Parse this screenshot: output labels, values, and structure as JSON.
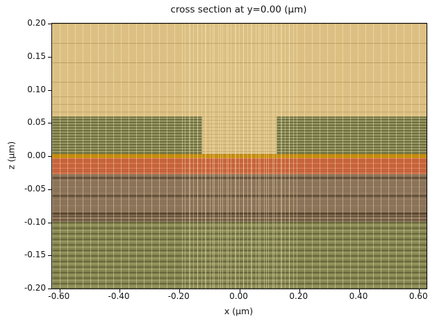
{
  "figure": {
    "title": "cross section at y=0.00 (μm)",
    "xlabel": "x (μm)",
    "ylabel": "z (μm)"
  },
  "chart_data": {
    "type": "heatmap",
    "title": "cross section at y=0.00 (μm)",
    "xlabel": "x (μm)",
    "ylabel": "z (μm)",
    "xlim": [
      -0.625,
      0.625
    ],
    "ylim": [
      -0.2,
      0.2
    ],
    "grid": "fine rectangular simulation mesh overlay, nonuniform spacing (denser near z=0 and near ridge)",
    "legend": false,
    "xticks": {
      "values": [
        -0.6,
        -0.4,
        -0.2,
        0.0,
        0.2,
        0.4,
        0.6
      ],
      "labels": [
        "-0.60",
        "-0.40",
        "-0.20",
        "0.00",
        "0.20",
        "0.40",
        "0.60"
      ]
    },
    "yticks": {
      "values": [
        0.2,
        0.15,
        0.1,
        0.05,
        0.0,
        -0.05,
        -0.1,
        -0.15,
        -0.2
      ],
      "labels": [
        "0.20",
        "0.15",
        "0.10",
        "0.05",
        "0.00",
        "-0.05",
        "-0.10",
        "-0.15",
        "-0.20"
      ]
    },
    "regions": [
      {
        "name": "top-cladding",
        "x": [
          -0.625,
          0.625
        ],
        "z": [
          0.0,
          0.2
        ],
        "color": "#dcc083"
      },
      {
        "name": "slab-left",
        "x": [
          -0.625,
          -0.123
        ],
        "z": [
          0.0,
          0.06
        ],
        "color": "#81814e"
      },
      {
        "name": "slab-right",
        "x": [
          0.123,
          0.625
        ],
        "z": [
          0.0,
          0.06
        ],
        "color": "#81814e"
      },
      {
        "name": "ridge",
        "x": [
          -0.123,
          0.123
        ],
        "z": [
          0.0,
          0.06
        ],
        "color": "#dcc083"
      },
      {
        "name": "thin-interface-layer",
        "x": [
          -0.625,
          0.625
        ],
        "z": [
          -0.003,
          0.003
        ],
        "color": "#c68c0e"
      },
      {
        "name": "orange-layer",
        "x": [
          -0.625,
          0.625
        ],
        "z": [
          -0.0275,
          -0.003
        ],
        "color": "#c5633d"
      },
      {
        "name": "brown-layer",
        "x": [
          -0.625,
          0.625
        ],
        "z": [
          -0.0995,
          -0.0275
        ],
        "color": "#8b7359"
      },
      {
        "name": "substrate-layer",
        "x": [
          -0.625,
          0.625
        ],
        "z": [
          -0.2,
          -0.0995
        ],
        "color": "#868652"
      }
    ]
  }
}
